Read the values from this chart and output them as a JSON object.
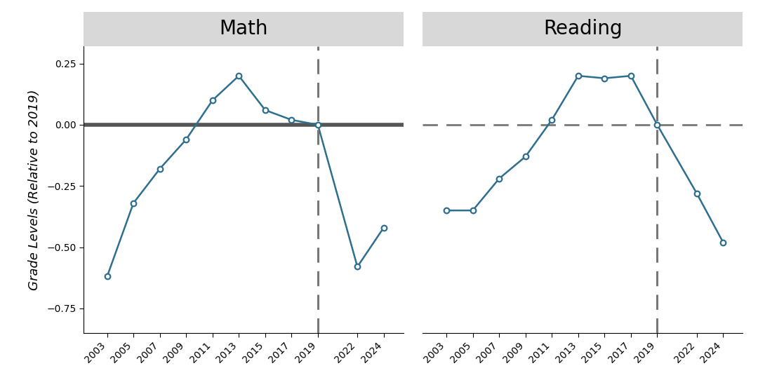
{
  "math": {
    "years": [
      2003,
      2005,
      2007,
      2009,
      2011,
      2013,
      2015,
      2017,
      2019,
      2022,
      2024
    ],
    "values": [
      -0.62,
      -0.32,
      -0.18,
      -0.06,
      0.1,
      0.2,
      0.06,
      0.02,
      0.0,
      -0.58,
      -0.42
    ]
  },
  "reading": {
    "years": [
      2003,
      2005,
      2007,
      2009,
      2011,
      2013,
      2015,
      2017,
      2019,
      2022,
      2024
    ],
    "values": [
      -0.35,
      -0.35,
      -0.22,
      -0.13,
      0.02,
      0.2,
      0.19,
      0.2,
      0.0,
      -0.28,
      -0.48
    ]
  },
  "line_color": "#2e6e8e",
  "marker_color": "#2e6e8e",
  "hline_color_math": "#555555",
  "hline_color_reading": "#808080",
  "vline_color": "#777777",
  "title_math": "Math",
  "title_reading": "Reading",
  "ylabel": "Grade Levels (Relative to 2019)",
  "ylim": [
    -0.85,
    0.32
  ],
  "yticks": [
    -0.75,
    -0.5,
    -0.25,
    0.0,
    0.25
  ],
  "reference_year": 2019,
  "background_color": "#ffffff",
  "title_bg_color": "#d8d8d8",
  "title_fontsize": 20,
  "ylabel_fontsize": 13,
  "tick_fontsize": 10
}
